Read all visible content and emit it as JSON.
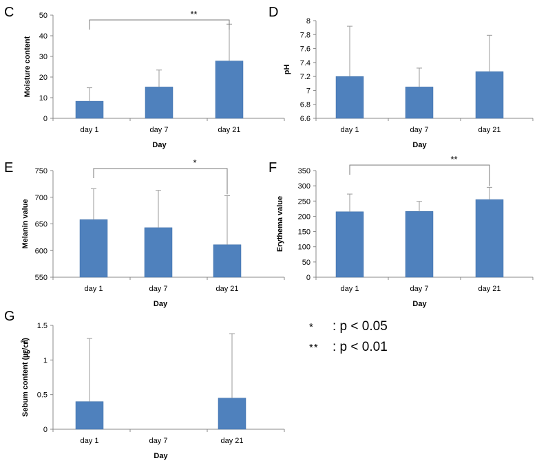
{
  "colors": {
    "bar": "#4f81bd",
    "bar_edge": "#3f6fa8",
    "axis": "#888888",
    "error": "#9a9a9a",
    "bracket": "#777777"
  },
  "chart_data": [
    {
      "panel": "C",
      "type": "bar",
      "categories": [
        "day 1",
        "day 7",
        "day 21"
      ],
      "values": [
        8.3,
        15.2,
        27.8
      ],
      "errors": [
        6.5,
        8.2,
        17.8
      ],
      "xlabel": "Day",
      "ylabel": "Moisture content",
      "ylim": [
        0,
        50
      ],
      "yticks": [
        "0",
        "10",
        "20",
        "30",
        "40",
        "50"
      ],
      "significance": {
        "from": 0,
        "to": 2,
        "label": "**"
      },
      "grid": false
    },
    {
      "panel": "D",
      "type": "bar",
      "categories": [
        "day 1",
        "day 7",
        "day 21"
      ],
      "values": [
        7.2,
        7.05,
        7.27
      ],
      "errors": [
        0.72,
        0.27,
        0.52
      ],
      "xlabel": "Day",
      "ylabel": "pH",
      "ylim": [
        6.6,
        8
      ],
      "yticks": [
        "6.6",
        "6.8",
        "7",
        "7.2",
        "7.4",
        "7.6",
        "7.8",
        "8"
      ],
      "grid": false
    },
    {
      "panel": "E",
      "type": "bar",
      "categories": [
        "day 1",
        "day 7",
        "day 21"
      ],
      "values": [
        658,
        643,
        611
      ],
      "errors": [
        58,
        70,
        92
      ],
      "xlabel": "Day",
      "ylabel": "Melanin value",
      "ylim": [
        550,
        750
      ],
      "yticks": [
        "550",
        "600",
        "650",
        "700",
        "750"
      ],
      "significance": {
        "from": 0,
        "to": 2,
        "label": "*"
      },
      "grid": false
    },
    {
      "panel": "F",
      "type": "bar",
      "categories": [
        "day 1",
        "day 7",
        "day 21"
      ],
      "values": [
        215,
        216,
        255
      ],
      "errors": [
        58,
        33,
        40
      ],
      "xlabel": "Day",
      "ylabel": "Erythema value",
      "ylim": [
        0,
        350
      ],
      "yticks": [
        "0",
        "50",
        "100",
        "150",
        "200",
        "250",
        "300",
        "350"
      ],
      "significance": {
        "from": 0,
        "to": 2,
        "label": "**"
      },
      "grid": false
    },
    {
      "panel": "G",
      "type": "bar",
      "categories": [
        "day 1",
        "day 7",
        "day 21"
      ],
      "values": [
        0.4,
        0,
        0.45
      ],
      "errors": [
        0.91,
        0,
        0.93
      ],
      "xlabel": "Day",
      "ylabel": "Sebum content (㎍/㎠)",
      "ylim": [
        0,
        1.5
      ],
      "yticks": [
        "0",
        "0.5",
        "1",
        "1.5"
      ],
      "grid": false
    }
  ],
  "legend": [
    {
      "symbol": "*",
      "text": ": p < 0.05"
    },
    {
      "symbol": "**",
      "text": ": p < 0.01"
    }
  ]
}
